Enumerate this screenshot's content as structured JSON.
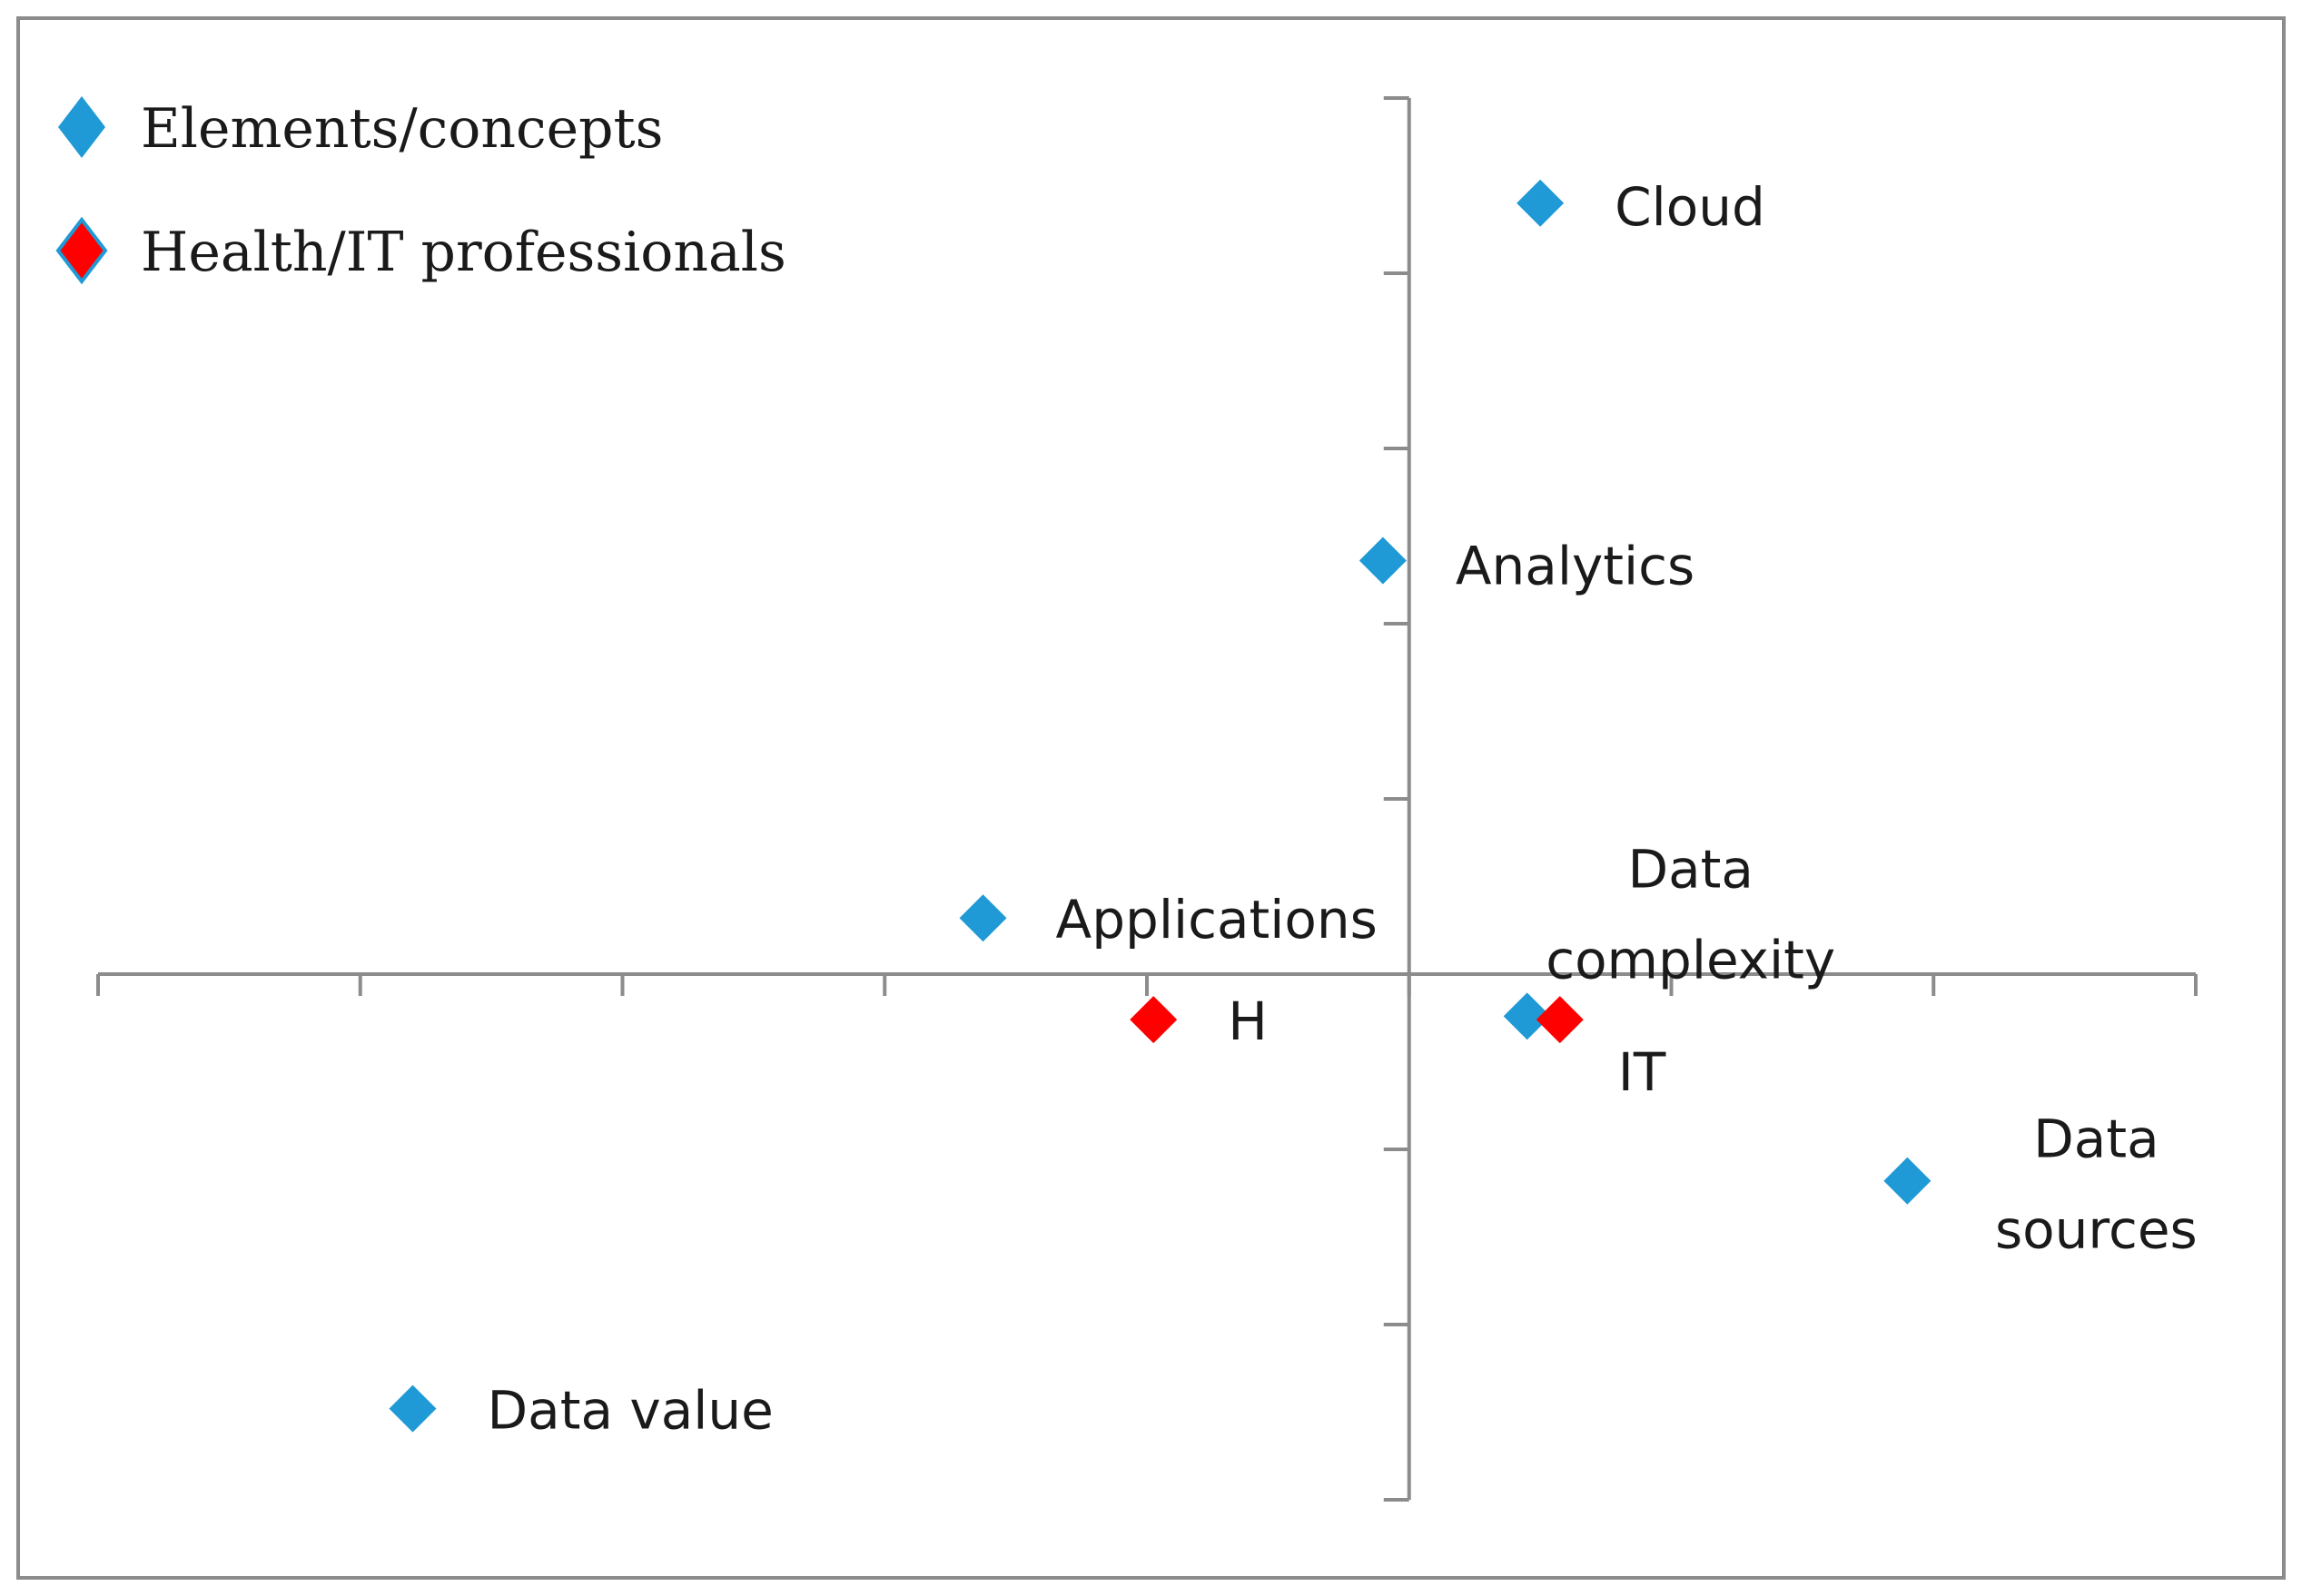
{
  "chart_data": {
    "type": "scatter",
    "title": "",
    "xlabel": "",
    "ylabel": "",
    "xlim": [
      -1.0,
      0.6
    ],
    "ylim": [
      -1.5,
      2.5
    ],
    "x_tick_step": 0.2,
    "y_tick_step": 0.5,
    "grid": false,
    "legend_position": "top-left",
    "series": [
      {
        "name": "Elements/concepts",
        "color": "#1f9ad6",
        "marker": "diamond",
        "points": [
          {
            "x": 0.1,
            "y": 2.2,
            "label": [
              "Cloud"
            ]
          },
          {
            "x": -0.02,
            "y": 1.18,
            "label": [
              "Analytics"
            ]
          },
          {
            "x": -0.325,
            "y": 0.16,
            "label": [
              "Applications"
            ]
          },
          {
            "x": 0.09,
            "y": -0.12,
            "label": [
              "Data",
              "complexity"
            ]
          },
          {
            "x": 0.38,
            "y": -0.59,
            "label": [
              "Data",
              "sources"
            ]
          },
          {
            "x": -0.76,
            "y": -1.24,
            "label": [
              "Data value"
            ]
          }
        ]
      },
      {
        "name": "Health/IT  professionals",
        "color": "#ff0000",
        "marker": "diamond",
        "points": [
          {
            "x": -0.195,
            "y": -0.13,
            "label": [
              "H"
            ]
          },
          {
            "x": 0.115,
            "y": -0.13,
            "label": [
              "IT"
            ]
          }
        ]
      }
    ]
  }
}
